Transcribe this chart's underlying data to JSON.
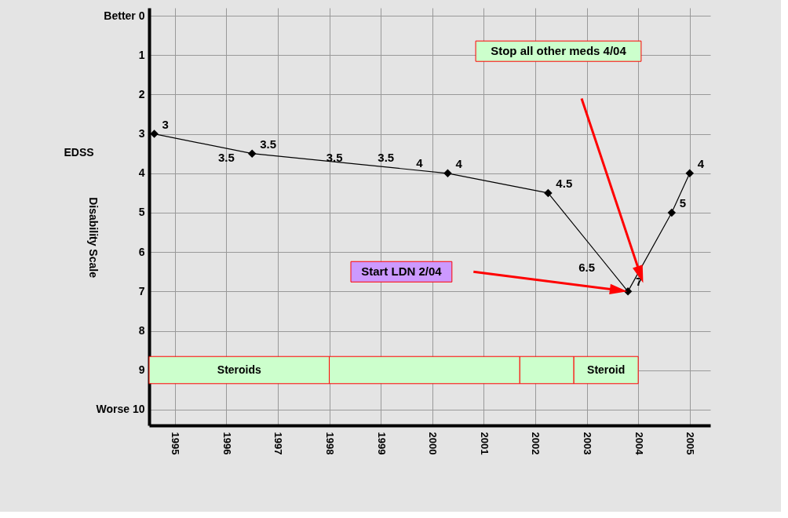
{
  "chart_data": {
    "type": "line",
    "ylabel": "EDSS",
    "x": [
      1994.6,
      1996.5,
      2000.3,
      2002.25,
      2003.8,
      2004.65,
      2005.0
    ],
    "values": [
      3,
      3.5,
      4,
      4.5,
      7,
      5,
      4
    ],
    "value_labels": [
      "3",
      "3.5",
      "4",
      "4.5",
      "7",
      "5",
      "4"
    ],
    "color": "#000000",
    "marker": "diamond",
    "line_style": "solid",
    "xlim": [
      1994.5,
      2005.4
    ],
    "xticks": [
      1995,
      1996,
      1997,
      1998,
      1999,
      2000,
      2001,
      2002,
      2003,
      2004,
      2005
    ],
    "ylim": [
      10.4,
      -0.2
    ],
    "yticks": [
      {
        "value": 0,
        "label": "Better 0"
      },
      1,
      2,
      3,
      4,
      5,
      6,
      7,
      8,
      9,
      {
        "value": 10,
        "label": "Worse 10"
      }
    ],
    "grid": true,
    "bands": [
      {
        "axis": "x",
        "from": 1994.5,
        "to": 1998.0,
        "label": "Steroids",
        "color": "#ccffcc"
      },
      {
        "axis": "x",
        "from": 1998.0,
        "to": 2001.7,
        "label": null,
        "color": "#ccffcc"
      },
      {
        "axis": "x",
        "from": 2001.7,
        "to": 2002.75,
        "label": null,
        "color": "#ccffcc"
      },
      {
        "axis": "x",
        "from": 2002.75,
        "to": 2004.0,
        "label": "Steroid",
        "color": "#ccffcc"
      }
    ],
    "annotations": [
      "Disability Scale",
      "3.5",
      "3.5",
      "3.5",
      "4",
      "6.5",
      "Start LDN 2/04",
      "Stop all other meds 4/04"
    ]
  }
}
